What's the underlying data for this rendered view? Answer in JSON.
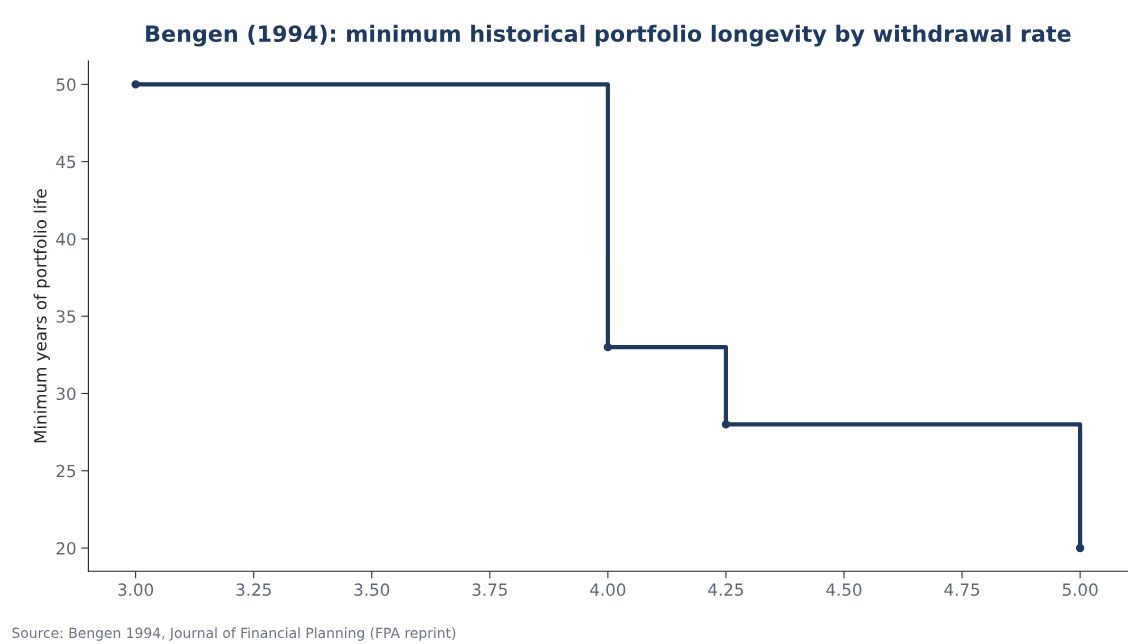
{
  "chart_data": {
    "type": "step",
    "title": "Bengen (1994): minimum historical portfolio longevity by withdrawal rate",
    "ylabel": "Minimum years of portfolio life",
    "x": [
      3.0,
      4.0,
      4.25,
      5.0
    ],
    "series": [
      {
        "color": "#1f3a5f",
        "values": [
          50,
          33,
          28,
          20
        ]
      }
    ],
    "xlim": [
      2.9,
      5.1
    ],
    "xticks": [
      {
        "value": 3.0,
        "label": "3.00"
      },
      {
        "value": 3.25,
        "label": "3.25"
      },
      {
        "value": 3.5,
        "label": "3.50"
      },
      {
        "value": 3.75,
        "label": "3.75"
      },
      {
        "value": 4.0,
        "label": "4.00"
      },
      {
        "value": 4.25,
        "label": "4.25"
      },
      {
        "value": 4.5,
        "label": "4.50"
      },
      {
        "value": 4.75,
        "label": "4.75"
      },
      {
        "value": 5.0,
        "label": "5.00"
      }
    ],
    "ylim": [
      18.5,
      51.5
    ],
    "yticks": [
      20,
      25,
      30,
      35,
      40,
      45,
      50
    ],
    "marker": "circle",
    "line_style": "solid",
    "grid": false,
    "annotations": [
      "Source: Bengen 1994, Journal of Financial Planning (FPA reprint)"
    ]
  }
}
